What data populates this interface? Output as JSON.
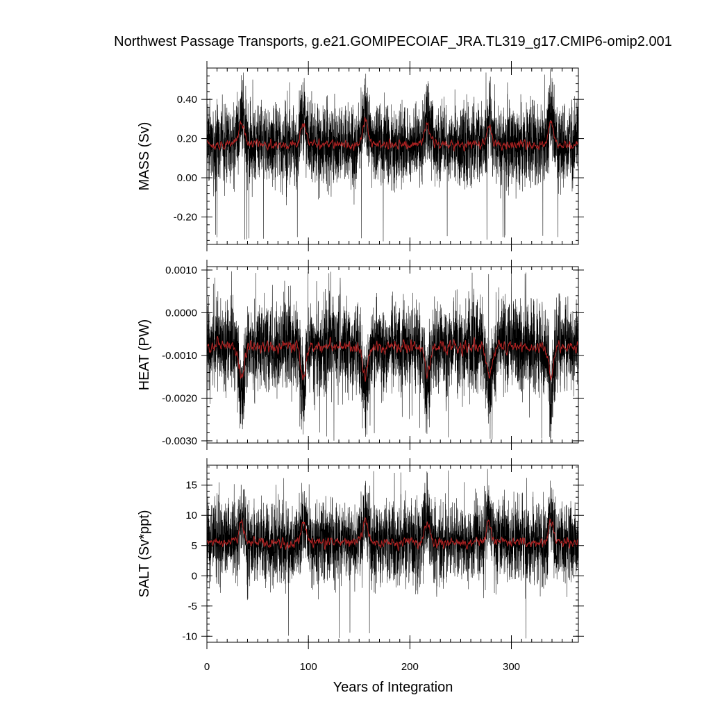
{
  "title": "Northwest Passage Transports, g.e21.GOMIPECOIAF_JRA.TL319_g17.CMIP6-omip2.001",
  "xlabel": "Years of Integration",
  "chart_data": [
    {
      "type": "line",
      "ylabel": "MASS (Sv)",
      "xlim": [
        0,
        366
      ],
      "ylim": [
        -0.34,
        0.56
      ],
      "yticks": [
        -0.2,
        0.0,
        0.2,
        0.4
      ],
      "ytick_labels": [
        "-0.20",
        "0.00",
        "0.20",
        "0.40"
      ],
      "xticks": [
        0,
        100,
        200,
        300
      ],
      "grid": false,
      "cycle_years": 61,
      "series": [
        {
          "role": "monthly",
          "color": "#000000",
          "mean": 0.17,
          "typical_range": [
            -0.1,
            0.4
          ],
          "extremes": [
            -0.33,
            0.54
          ],
          "cycle_peaks_at_years": [
            34,
            95,
            156,
            217,
            278,
            339
          ],
          "cycle_peak_value": 0.35
        },
        {
          "role": "smoothed",
          "color": "#b22222",
          "mean": 0.17,
          "range": [
            0.09,
            0.32
          ],
          "cycle_peaks_at_years": [
            34,
            95,
            156,
            217,
            278,
            339
          ],
          "cycle_peak_value": 0.28
        }
      ]
    },
    {
      "type": "line",
      "ylabel": "HEAT (PW)",
      "xlim": [
        0,
        366
      ],
      "ylim": [
        -0.00305,
        0.00108
      ],
      "yticks": [
        -0.003,
        -0.002,
        -0.001,
        0.0,
        0.001
      ],
      "ytick_labels": [
        "-0.0030",
        "-0.0020",
        "-0.0010",
        "0.0000",
        "0.0010"
      ],
      "xticks": [
        0,
        100,
        200,
        300
      ],
      "grid": false,
      "cycle_years": 61,
      "series": [
        {
          "role": "monthly",
          "color": "#000000",
          "mean": -0.0008,
          "typical_range": [
            -0.0022,
            0.0003
          ],
          "extremes": [
            -0.003,
            0.001
          ],
          "cycle_troughs_at_years": [
            34,
            95,
            156,
            217,
            278,
            339
          ],
          "cycle_trough_value": -0.0024
        },
        {
          "role": "smoothed",
          "color": "#b22222",
          "mean": -0.0008,
          "range": [
            -0.0017,
            -0.0004
          ],
          "cycle_troughs_at_years": [
            34,
            95,
            156,
            217,
            278,
            339
          ],
          "cycle_trough_value": -0.0015
        }
      ]
    },
    {
      "type": "line",
      "ylabel": "SALT (Sv*ppt)",
      "xlim": [
        0,
        366
      ],
      "ylim": [
        -11,
        18.3
      ],
      "yticks": [
        -10,
        -5,
        0,
        5,
        10,
        15
      ],
      "ytick_labels": [
        "-10",
        "-5",
        "0",
        "5",
        "10",
        "15"
      ],
      "xticks": [
        0,
        100,
        200,
        300
      ],
      "grid": false,
      "cycle_years": 61,
      "series": [
        {
          "role": "monthly",
          "color": "#000000",
          "mean": 5.5,
          "typical_range": [
            -3,
            13
          ],
          "extremes": [
            -10.5,
            17.5
          ],
          "cycle_peaks_at_years": [
            34,
            95,
            156,
            217,
            278,
            339
          ],
          "cycle_peak_value": 11
        },
        {
          "role": "smoothed",
          "color": "#b22222",
          "mean": 5.5,
          "range": [
            2.5,
            10
          ],
          "cycle_peaks_at_years": [
            34,
            95,
            156,
            217,
            278,
            339
          ],
          "cycle_peak_value": 9
        }
      ]
    }
  ],
  "xtick_labels": [
    "0",
    "100",
    "200",
    "300"
  ]
}
